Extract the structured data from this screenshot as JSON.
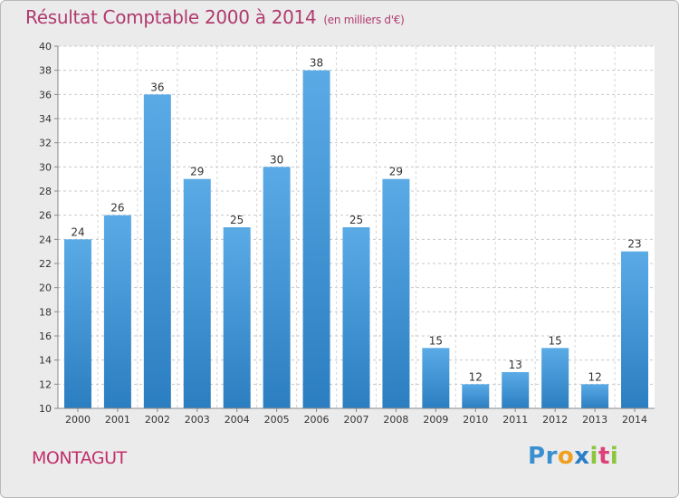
{
  "header": {
    "title": "Résultat Comptable 2000 à 2014",
    "subtitle": "(en milliers d'€)"
  },
  "footer": {
    "town": "MONTAGUT",
    "logo_text": "Proxiti"
  },
  "colors": {
    "bar_top": "#5aaae6",
    "bar_bottom": "#2b7ec0",
    "title": "#b03a6e",
    "background": "#ebebeb",
    "plot_background": "#ffffff"
  },
  "chart_data": {
    "type": "bar",
    "title": "Résultat Comptable 2000 à 2014",
    "subtitle": "(en milliers d'€)",
    "categories": [
      "2000",
      "2001",
      "2002",
      "2003",
      "2004",
      "2005",
      "2006",
      "2007",
      "2008",
      "2009",
      "2010",
      "2011",
      "2012",
      "2013",
      "2014"
    ],
    "values": [
      24,
      26,
      36,
      29,
      25,
      30,
      38,
      25,
      29,
      15,
      12,
      13,
      15,
      12,
      23
    ],
    "ylim": [
      10,
      40
    ],
    "yticks": [
      10,
      12,
      14,
      16,
      18,
      20,
      22,
      24,
      26,
      28,
      30,
      32,
      34,
      36,
      38,
      40
    ],
    "grid": "y-dashed",
    "legend": "none"
  }
}
